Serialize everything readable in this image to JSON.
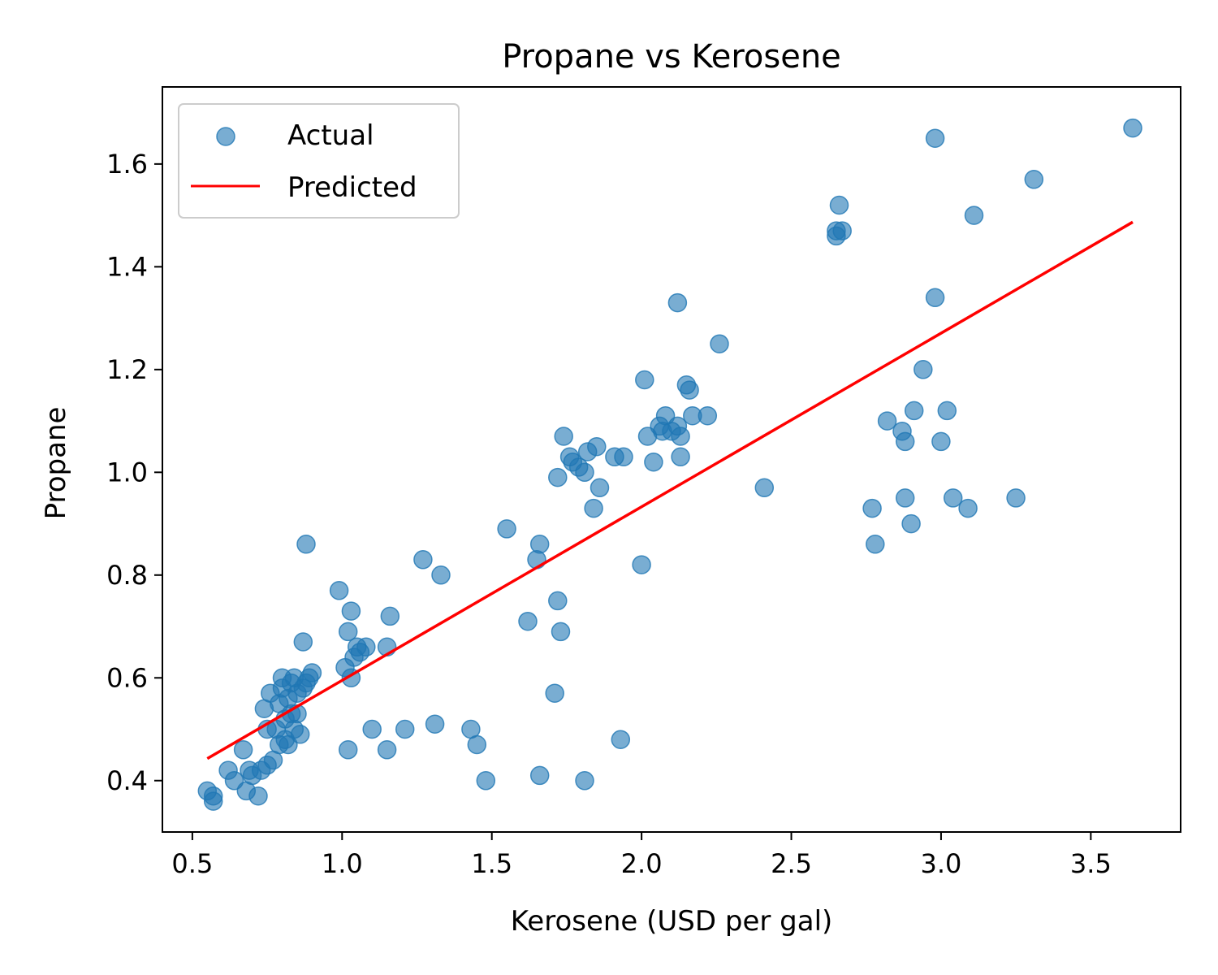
{
  "chart_data": {
    "type": "scatter",
    "title": "Propane vs Kerosene",
    "xlabel": "Kerosene (USD per gal)",
    "ylabel": "Propane",
    "xlim": [
      0.4,
      3.8
    ],
    "ylim": [
      0.3,
      1.75
    ],
    "xticks": [
      "0.5",
      "1.0",
      "1.5",
      "2.0",
      "2.5",
      "3.0",
      "3.5"
    ],
    "yticks": [
      "0.4",
      "0.6",
      "0.8",
      "1.0",
      "1.2",
      "1.4",
      "1.6"
    ],
    "grid": false,
    "legend_position": "top-left",
    "colors": {
      "actual": "#1f77b4",
      "predicted": "#ff0000"
    },
    "series": [
      {
        "name": "Actual",
        "type": "scatter",
        "points": [
          [
            0.55,
            0.38
          ],
          [
            0.57,
            0.37
          ],
          [
            0.57,
            0.36
          ],
          [
            0.62,
            0.42
          ],
          [
            0.64,
            0.4
          ],
          [
            0.67,
            0.46
          ],
          [
            0.68,
            0.38
          ],
          [
            0.69,
            0.42
          ],
          [
            0.7,
            0.41
          ],
          [
            0.72,
            0.37
          ],
          [
            0.73,
            0.42
          ],
          [
            0.75,
            0.43
          ],
          [
            0.74,
            0.54
          ],
          [
            0.75,
            0.5
          ],
          [
            0.76,
            0.57
          ],
          [
            0.77,
            0.44
          ],
          [
            0.78,
            0.5
          ],
          [
            0.79,
            0.47
          ],
          [
            0.79,
            0.55
          ],
          [
            0.8,
            0.58
          ],
          [
            0.8,
            0.6
          ],
          [
            0.81,
            0.48
          ],
          [
            0.81,
            0.52
          ],
          [
            0.82,
            0.56
          ],
          [
            0.82,
            0.47
          ],
          [
            0.83,
            0.53
          ],
          [
            0.83,
            0.59
          ],
          [
            0.84,
            0.6
          ],
          [
            0.84,
            0.5
          ],
          [
            0.85,
            0.53
          ],
          [
            0.85,
            0.57
          ],
          [
            0.86,
            0.49
          ],
          [
            0.87,
            0.58
          ],
          [
            0.87,
            0.67
          ],
          [
            0.88,
            0.59
          ],
          [
            0.88,
            0.86
          ],
          [
            0.89,
            0.6
          ],
          [
            0.9,
            0.61
          ],
          [
            0.99,
            0.77
          ],
          [
            1.01,
            0.62
          ],
          [
            1.02,
            0.69
          ],
          [
            1.02,
            0.46
          ],
          [
            1.03,
            0.73
          ],
          [
            1.03,
            0.6
          ],
          [
            1.04,
            0.64
          ],
          [
            1.05,
            0.66
          ],
          [
            1.06,
            0.65
          ],
          [
            1.08,
            0.66
          ],
          [
            1.1,
            0.5
          ],
          [
            1.15,
            0.46
          ],
          [
            1.15,
            0.66
          ],
          [
            1.16,
            0.72
          ],
          [
            1.21,
            0.5
          ],
          [
            1.27,
            0.83
          ],
          [
            1.31,
            0.51
          ],
          [
            1.33,
            0.8
          ],
          [
            1.43,
            0.5
          ],
          [
            1.45,
            0.47
          ],
          [
            1.48,
            0.4
          ],
          [
            1.55,
            0.89
          ],
          [
            1.62,
            0.71
          ],
          [
            1.65,
            0.83
          ],
          [
            1.66,
            0.86
          ],
          [
            1.66,
            0.41
          ],
          [
            1.71,
            0.57
          ],
          [
            1.72,
            0.75
          ],
          [
            1.72,
            0.99
          ],
          [
            1.73,
            0.69
          ],
          [
            1.74,
            1.07
          ],
          [
            1.76,
            1.03
          ],
          [
            1.77,
            1.02
          ],
          [
            1.79,
            1.01
          ],
          [
            1.81,
            1.0
          ],
          [
            1.82,
            1.04
          ],
          [
            1.81,
            0.4
          ],
          [
            1.84,
            0.93
          ],
          [
            1.85,
            1.05
          ],
          [
            1.86,
            0.97
          ],
          [
            1.91,
            1.03
          ],
          [
            1.94,
            1.03
          ],
          [
            1.93,
            0.48
          ],
          [
            2.0,
            0.82
          ],
          [
            2.01,
            1.18
          ],
          [
            2.02,
            1.07
          ],
          [
            2.04,
            1.02
          ],
          [
            2.06,
            1.09
          ],
          [
            2.07,
            1.08
          ],
          [
            2.08,
            1.11
          ],
          [
            2.1,
            1.08
          ],
          [
            2.12,
            1.33
          ],
          [
            2.12,
            1.09
          ],
          [
            2.13,
            1.07
          ],
          [
            2.13,
            1.03
          ],
          [
            2.15,
            1.17
          ],
          [
            2.16,
            1.16
          ],
          [
            2.17,
            1.11
          ],
          [
            2.22,
            1.11
          ],
          [
            2.26,
            1.25
          ],
          [
            2.41,
            0.97
          ],
          [
            2.65,
            1.46
          ],
          [
            2.65,
            1.47
          ],
          [
            2.66,
            1.52
          ],
          [
            2.67,
            1.47
          ],
          [
            2.77,
            0.93
          ],
          [
            2.78,
            0.86
          ],
          [
            2.82,
            1.1
          ],
          [
            2.87,
            1.08
          ],
          [
            2.88,
            1.06
          ],
          [
            2.88,
            0.95
          ],
          [
            2.9,
            0.9
          ],
          [
            2.91,
            1.12
          ],
          [
            2.94,
            1.2
          ],
          [
            2.98,
            1.34
          ],
          [
            2.98,
            1.65
          ],
          [
            3.0,
            1.06
          ],
          [
            3.02,
            1.12
          ],
          [
            3.04,
            0.95
          ],
          [
            3.09,
            0.93
          ],
          [
            3.11,
            1.5
          ],
          [
            3.25,
            0.95
          ],
          [
            3.31,
            1.57
          ],
          [
            3.64,
            1.67
          ]
        ]
      },
      {
        "name": "Predicted",
        "type": "line",
        "points": [
          [
            0.55,
            0.443
          ],
          [
            3.64,
            1.487
          ]
        ]
      }
    ]
  }
}
